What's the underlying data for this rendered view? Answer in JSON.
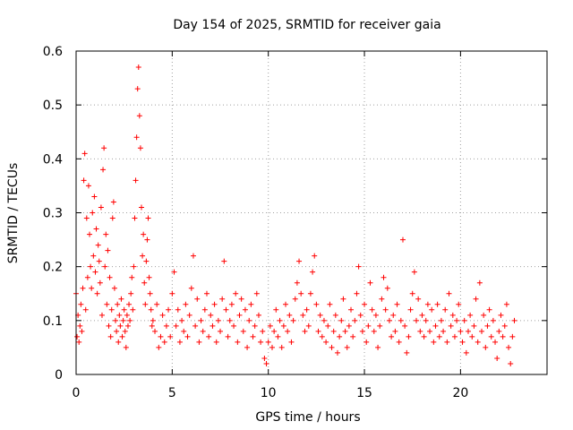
{
  "chart_data": {
    "type": "scatter",
    "title": "Day 154 of 2025, SRMTID for receiver gaia",
    "xlabel": "GPS time / hours",
    "ylabel": "SRMTID / TECUs",
    "xlim": [
      0,
      24.5
    ],
    "ylim": [
      0,
      0.6
    ],
    "xticks": [
      "0",
      "5",
      "10",
      "15",
      "20"
    ],
    "yticks": [
      "0",
      "0.1",
      "0.2",
      "0.3",
      "0.4",
      "0.5",
      "0.6"
    ],
    "grid": true,
    "marker": "plus",
    "color": "#ff0000",
    "series": [
      {
        "name": "SRMTID",
        "points": [
          [
            0.0,
            0.15
          ],
          [
            0.05,
            0.07
          ],
          [
            0.1,
            0.11
          ],
          [
            0.15,
            0.06
          ],
          [
            0.2,
            0.09
          ],
          [
            0.25,
            0.13
          ],
          [
            0.3,
            0.08
          ],
          [
            0.35,
            0.16
          ],
          [
            0.4,
            0.36
          ],
          [
            0.45,
            0.41
          ],
          [
            0.5,
            0.12
          ],
          [
            0.55,
            0.29
          ],
          [
            0.6,
            0.18
          ],
          [
            0.65,
            0.35
          ],
          [
            0.7,
            0.26
          ],
          [
            0.75,
            0.2
          ],
          [
            0.8,
            0.16
          ],
          [
            0.85,
            0.3
          ],
          [
            0.9,
            0.22
          ],
          [
            0.95,
            0.33
          ],
          [
            1.0,
            0.19
          ],
          [
            1.05,
            0.27
          ],
          [
            1.1,
            0.15
          ],
          [
            1.15,
            0.24
          ],
          [
            1.2,
            0.21
          ],
          [
            1.25,
            0.17
          ],
          [
            1.3,
            0.31
          ],
          [
            1.35,
            0.11
          ],
          [
            1.4,
            0.38
          ],
          [
            1.45,
            0.42
          ],
          [
            1.5,
            0.2
          ],
          [
            1.55,
            0.26
          ],
          [
            1.6,
            0.13
          ],
          [
            1.65,
            0.23
          ],
          [
            1.7,
            0.09
          ],
          [
            1.75,
            0.18
          ],
          [
            1.8,
            0.07
          ],
          [
            1.85,
            0.12
          ],
          [
            1.9,
            0.29
          ],
          [
            1.95,
            0.32
          ],
          [
            2.0,
            0.16
          ],
          [
            2.05,
            0.1
          ],
          [
            2.1,
            0.08
          ],
          [
            2.15,
            0.13
          ],
          [
            2.2,
            0.06
          ],
          [
            2.25,
            0.11
          ],
          [
            2.3,
            0.09
          ],
          [
            2.35,
            0.14
          ],
          [
            2.4,
            0.07
          ],
          [
            2.45,
            0.1
          ],
          [
            2.5,
            0.12
          ],
          [
            2.55,
            0.08
          ],
          [
            2.6,
            0.05
          ],
          [
            2.65,
            0.11
          ],
          [
            2.7,
            0.09
          ],
          [
            2.75,
            0.13
          ],
          [
            2.8,
            0.1
          ],
          [
            2.85,
            0.15
          ],
          [
            2.9,
            0.18
          ],
          [
            2.95,
            0.12
          ],
          [
            3.0,
            0.2
          ],
          [
            3.05,
            0.29
          ],
          [
            3.1,
            0.36
          ],
          [
            3.15,
            0.44
          ],
          [
            3.2,
            0.53
          ],
          [
            3.25,
            0.57
          ],
          [
            3.3,
            0.48
          ],
          [
            3.35,
            0.42
          ],
          [
            3.4,
            0.31
          ],
          [
            3.45,
            0.22
          ],
          [
            3.5,
            0.26
          ],
          [
            3.55,
            0.17
          ],
          [
            3.6,
            0.13
          ],
          [
            3.65,
            0.21
          ],
          [
            3.7,
            0.25
          ],
          [
            3.75,
            0.29
          ],
          [
            3.8,
            0.18
          ],
          [
            3.85,
            0.15
          ],
          [
            3.9,
            0.12
          ],
          [
            3.95,
            0.09
          ],
          [
            4.0,
            0.1
          ],
          [
            4.1,
            0.08
          ],
          [
            4.2,
            0.13
          ],
          [
            4.3,
            0.05
          ],
          [
            4.4,
            0.07
          ],
          [
            4.5,
            0.11
          ],
          [
            4.6,
            0.06
          ],
          [
            4.7,
            0.09
          ],
          [
            4.8,
            0.12
          ],
          [
            4.9,
            0.07
          ],
          [
            5.0,
            0.15
          ],
          [
            5.1,
            0.19
          ],
          [
            5.2,
            0.09
          ],
          [
            5.3,
            0.12
          ],
          [
            5.4,
            0.06
          ],
          [
            5.5,
            0.1
          ],
          [
            5.6,
            0.08
          ],
          [
            5.7,
            0.13
          ],
          [
            5.8,
            0.07
          ],
          [
            5.9,
            0.11
          ],
          [
            6.0,
            0.16
          ],
          [
            6.1,
            0.22
          ],
          [
            6.2,
            0.09
          ],
          [
            6.3,
            0.14
          ],
          [
            6.4,
            0.06
          ],
          [
            6.5,
            0.1
          ],
          [
            6.6,
            0.08
          ],
          [
            6.7,
            0.12
          ],
          [
            6.8,
            0.15
          ],
          [
            6.9,
            0.07
          ],
          [
            7.0,
            0.11
          ],
          [
            7.1,
            0.09
          ],
          [
            7.2,
            0.13
          ],
          [
            7.3,
            0.06
          ],
          [
            7.4,
            0.1
          ],
          [
            7.5,
            0.08
          ],
          [
            7.6,
            0.14
          ],
          [
            7.7,
            0.21
          ],
          [
            7.8,
            0.12
          ],
          [
            7.9,
            0.07
          ],
          [
            8.0,
            0.1
          ],
          [
            8.1,
            0.13
          ],
          [
            8.2,
            0.09
          ],
          [
            8.3,
            0.15
          ],
          [
            8.4,
            0.06
          ],
          [
            8.5,
            0.11
          ],
          [
            8.6,
            0.14
          ],
          [
            8.7,
            0.08
          ],
          [
            8.8,
            0.12
          ],
          [
            8.9,
            0.05
          ],
          [
            9.0,
            0.1
          ],
          [
            9.1,
            0.13
          ],
          [
            9.2,
            0.07
          ],
          [
            9.3,
            0.09
          ],
          [
            9.4,
            0.15
          ],
          [
            9.5,
            0.11
          ],
          [
            9.6,
            0.06
          ],
          [
            9.7,
            0.08
          ],
          [
            9.8,
            0.03
          ],
          [
            9.9,
            0.02
          ],
          [
            10.0,
            0.06
          ],
          [
            10.1,
            0.09
          ],
          [
            10.2,
            0.05
          ],
          [
            10.3,
            0.08
          ],
          [
            10.4,
            0.12
          ],
          [
            10.5,
            0.07
          ],
          [
            10.6,
            0.1
          ],
          [
            10.7,
            0.05
          ],
          [
            10.8,
            0.09
          ],
          [
            10.9,
            0.13
          ],
          [
            11.0,
            0.08
          ],
          [
            11.1,
            0.11
          ],
          [
            11.2,
            0.06
          ],
          [
            11.3,
            0.1
          ],
          [
            11.4,
            0.14
          ],
          [
            11.5,
            0.17
          ],
          [
            11.6,
            0.21
          ],
          [
            11.7,
            0.15
          ],
          [
            11.8,
            0.11
          ],
          [
            11.9,
            0.08
          ],
          [
            12.0,
            0.12
          ],
          [
            12.1,
            0.09
          ],
          [
            12.2,
            0.15
          ],
          [
            12.3,
            0.19
          ],
          [
            12.4,
            0.22
          ],
          [
            12.5,
            0.13
          ],
          [
            12.6,
            0.08
          ],
          [
            12.7,
            0.11
          ],
          [
            12.8,
            0.07
          ],
          [
            12.9,
            0.1
          ],
          [
            13.0,
            0.06
          ],
          [
            13.1,
            0.09
          ],
          [
            13.2,
            0.13
          ],
          [
            13.3,
            0.05
          ],
          [
            13.4,
            0.08
          ],
          [
            13.5,
            0.11
          ],
          [
            13.6,
            0.04
          ],
          [
            13.7,
            0.07
          ],
          [
            13.8,
            0.1
          ],
          [
            13.9,
            0.14
          ],
          [
            14.0,
            0.08
          ],
          [
            14.1,
            0.05
          ],
          [
            14.2,
            0.09
          ],
          [
            14.3,
            0.12
          ],
          [
            14.4,
            0.07
          ],
          [
            14.5,
            0.1
          ],
          [
            14.6,
            0.15
          ],
          [
            14.7,
            0.2
          ],
          [
            14.8,
            0.11
          ],
          [
            14.9,
            0.08
          ],
          [
            15.0,
            0.13
          ],
          [
            15.1,
            0.06
          ],
          [
            15.2,
            0.09
          ],
          [
            15.3,
            0.17
          ],
          [
            15.4,
            0.12
          ],
          [
            15.5,
            0.08
          ],
          [
            15.6,
            0.11
          ],
          [
            15.7,
            0.05
          ],
          [
            15.8,
            0.09
          ],
          [
            15.9,
            0.14
          ],
          [
            16.0,
            0.18
          ],
          [
            16.1,
            0.12
          ],
          [
            16.2,
            0.16
          ],
          [
            16.3,
            0.1
          ],
          [
            16.4,
            0.07
          ],
          [
            16.5,
            0.11
          ],
          [
            16.6,
            0.08
          ],
          [
            16.7,
            0.13
          ],
          [
            16.8,
            0.06
          ],
          [
            16.9,
            0.1
          ],
          [
            17.0,
            0.25
          ],
          [
            17.1,
            0.09
          ],
          [
            17.2,
            0.04
          ],
          [
            17.3,
            0.07
          ],
          [
            17.4,
            0.12
          ],
          [
            17.5,
            0.15
          ],
          [
            17.6,
            0.19
          ],
          [
            17.7,
            0.1
          ],
          [
            17.8,
            0.14
          ],
          [
            17.9,
            0.08
          ],
          [
            18.0,
            0.11
          ],
          [
            18.1,
            0.07
          ],
          [
            18.2,
            0.1
          ],
          [
            18.3,
            0.13
          ],
          [
            18.4,
            0.08
          ],
          [
            18.5,
            0.12
          ],
          [
            18.6,
            0.06
          ],
          [
            18.7,
            0.09
          ],
          [
            18.8,
            0.13
          ],
          [
            18.9,
            0.07
          ],
          [
            19.0,
            0.1
          ],
          [
            19.1,
            0.08
          ],
          [
            19.2,
            0.12
          ],
          [
            19.3,
            0.06
          ],
          [
            19.4,
            0.15
          ],
          [
            19.5,
            0.09
          ],
          [
            19.6,
            0.11
          ],
          [
            19.7,
            0.07
          ],
          [
            19.8,
            0.1
          ],
          [
            19.9,
            0.13
          ],
          [
            20.0,
            0.08
          ],
          [
            20.1,
            0.06
          ],
          [
            20.2,
            0.1
          ],
          [
            20.3,
            0.04
          ],
          [
            20.4,
            0.08
          ],
          [
            20.5,
            0.11
          ],
          [
            20.6,
            0.07
          ],
          [
            20.7,
            0.09
          ],
          [
            20.8,
            0.14
          ],
          [
            20.9,
            0.06
          ],
          [
            21.0,
            0.17
          ],
          [
            21.1,
            0.08
          ],
          [
            21.2,
            0.11
          ],
          [
            21.3,
            0.05
          ],
          [
            21.4,
            0.09
          ],
          [
            21.5,
            0.12
          ],
          [
            21.6,
            0.07
          ],
          [
            21.7,
            0.1
          ],
          [
            21.8,
            0.06
          ],
          [
            21.9,
            0.03
          ],
          [
            22.0,
            0.08
          ],
          [
            22.1,
            0.11
          ],
          [
            22.2,
            0.07
          ],
          [
            22.3,
            0.09
          ],
          [
            22.4,
            0.13
          ],
          [
            22.5,
            0.05
          ],
          [
            22.6,
            0.02
          ],
          [
            22.7,
            0.07
          ],
          [
            22.8,
            0.1
          ]
        ]
      }
    ]
  }
}
